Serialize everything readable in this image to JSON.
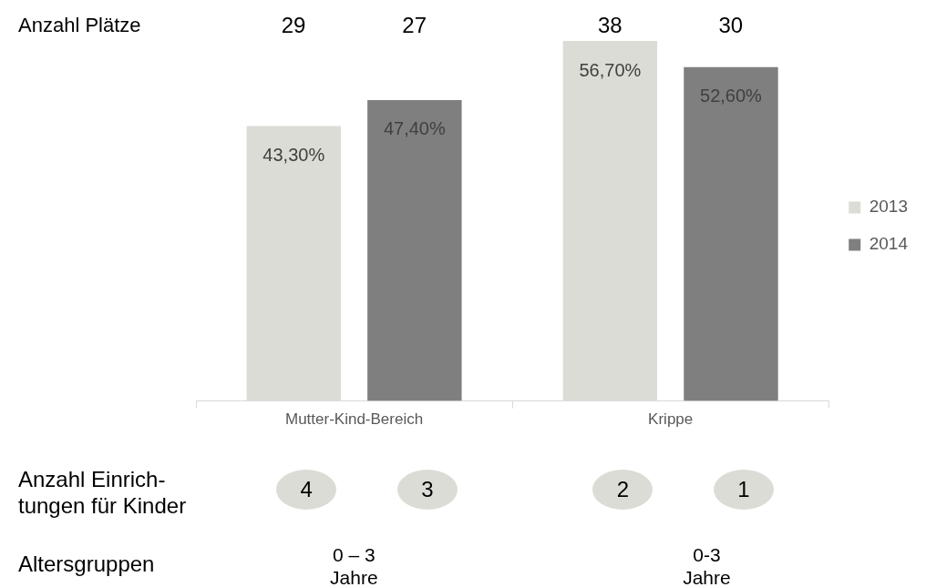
{
  "chart_data": {
    "type": "bar",
    "categories": [
      "Mutter-Kind-Bereich",
      "Krippe"
    ],
    "series": [
      {
        "name": "2013",
        "color": "#dcdcd6",
        "values": [
          43.3,
          56.7
        ],
        "value_labels": [
          "43,30%",
          "56,70%"
        ]
      },
      {
        "name": "2014",
        "color": "#7f7f7f",
        "values": [
          47.4,
          52.6
        ],
        "value_labels": [
          "47,40%",
          "52,60%"
        ]
      }
    ],
    "legend": "right",
    "grid": false,
    "annotations": [
      "Anzahl Plätze",
      "29",
      "27",
      "38",
      "30",
      "Anzahl Einrich-\ntungen für Kinder",
      "4",
      "3",
      "2",
      "1",
      "Altersgruppen",
      "0 – 3\nJahre",
      "0-3\nJahre"
    ]
  }
}
